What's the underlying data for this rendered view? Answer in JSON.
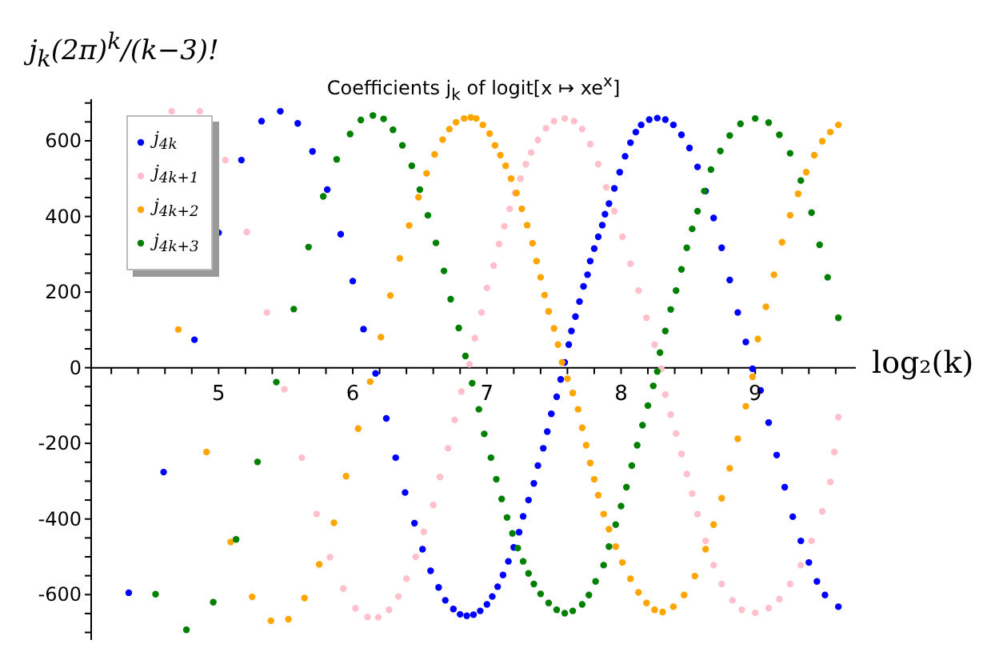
{
  "chart_data": {
    "type": "scatter",
    "title": "Coefficients j$_{k}$ of logit[x ↦ xe$^{x}$]",
    "xlabel": "log₂(k)",
    "ylabel": "j$_{k}$(2π)$^{k}$/(k−3)!",
    "marker": "circle",
    "legend": "top left",
    "xlim": [
      4.05,
      9.75
    ],
    "xticks": [
      {
        "value": 4.2,
        "label": null
      },
      {
        "value": 4.4,
        "label": null
      },
      {
        "value": 4.6,
        "label": null
      },
      {
        "value": 4.8,
        "label": null
      },
      5,
      {
        "value": 5.2,
        "label": null
      },
      {
        "value": 5.4,
        "label": null
      },
      {
        "value": 5.6,
        "label": null
      },
      {
        "value": 5.8,
        "label": null
      },
      6,
      {
        "value": 6.2,
        "label": null
      },
      {
        "value": 6.4,
        "label": null
      },
      {
        "value": 6.6,
        "label": null
      },
      {
        "value": 6.8,
        "label": null
      },
      7,
      {
        "value": 7.2,
        "label": null
      },
      {
        "value": 7.4,
        "label": null
      },
      {
        "value": 7.6,
        "label": null
      },
      {
        "value": 7.8,
        "label": null
      },
      8,
      {
        "value": 8.2,
        "label": null
      },
      {
        "value": 8.4,
        "label": null
      },
      {
        "value": 8.6,
        "label": null
      },
      {
        "value": 8.8,
        "label": null
      },
      9,
      {
        "value": 9.2,
        "label": null
      },
      {
        "value": 9.4,
        "label": null
      },
      {
        "value": 9.6,
        "label": null
      }
    ],
    "ylim": [
      -720,
      710
    ],
    "yticks": [
      {
        "value": -700,
        "label": null
      },
      {
        "value": -650,
        "label": null
      },
      -600,
      {
        "value": -550,
        "label": null
      },
      {
        "value": -500,
        "label": null
      },
      {
        "value": -450,
        "label": null
      },
      -400,
      {
        "value": -350,
        "label": null
      },
      {
        "value": -300,
        "label": null
      },
      {
        "value": -250,
        "label": null
      },
      -200,
      {
        "value": -150,
        "label": null
      },
      {
        "value": -100,
        "label": null
      },
      {
        "value": -50,
        "label": null
      },
      0,
      {
        "value": 50,
        "label": null
      },
      {
        "value": 100,
        "label": null
      },
      {
        "value": 150,
        "label": null
      },
      200,
      {
        "value": 250,
        "label": null
      },
      {
        "value": 300,
        "label": null
      },
      {
        "value": 350,
        "label": null
      },
      400,
      {
        "value": 450,
        "label": null
      },
      {
        "value": 500,
        "label": null
      },
      {
        "value": 550,
        "label": null
      },
      600,
      {
        "value": 650,
        "label": null
      },
      {
        "value": 700,
        "label": null
      }
    ],
    "series": [
      {
        "name": "j$_{4k}$",
        "color": "#0000ff",
        "x": [
          4.33,
          4.59,
          4.82,
          5.0,
          5.17,
          5.32,
          5.46,
          5.59,
          5.7,
          5.81,
          5.91,
          6.0,
          6.08,
          6.17,
          6.25,
          6.32,
          6.39,
          6.46,
          6.52,
          6.58,
          6.64,
          6.69,
          6.75,
          6.8,
          6.85,
          6.9,
          6.95,
          7.0,
          7.04,
          7.08,
          7.12,
          7.16,
          7.2,
          7.24,
          7.27,
          7.31,
          7.35,
          7.38,
          7.42,
          7.45,
          7.48,
          7.52,
          7.55,
          7.58,
          7.61,
          7.63,
          7.66,
          7.69,
          7.72,
          7.75,
          7.77,
          7.8,
          7.83,
          7.86,
          7.88,
          7.91,
          7.95,
          7.99,
          8.03,
          8.07,
          8.11,
          8.15,
          8.21,
          8.27,
          8.33,
          8.39,
          8.45,
          8.51,
          8.57,
          8.63,
          8.69,
          8.75,
          8.81,
          8.87,
          8.93,
          8.98,
          9.04,
          9.1,
          9.16,
          9.22,
          9.28,
          9.34,
          9.4,
          9.46,
          9.52,
          9.62
        ],
        "values": [
          -595,
          -276,
          74,
          357,
          549,
          652,
          678,
          646,
          572,
          471,
          353,
          229,
          102,
          -15,
          -134,
          -238,
          -330,
          -411,
          -480,
          -537,
          -581,
          -615,
          -638,
          -652,
          -656,
          -653,
          -643,
          -626,
          -605,
          -579,
          -548,
          -512,
          -475,
          -435,
          -393,
          -350,
          -306,
          -259,
          -213,
          -169,
          -122,
          -77,
          -31,
          14,
          61,
          97,
          135,
          175,
          215,
          246,
          282,
          315,
          346,
          377,
          406,
          434,
          474,
          517,
          559,
          595,
          623,
          642,
          656,
          660,
          656,
          642,
          616,
          581,
          531,
          467,
          396,
          317,
          232,
          146,
          68,
          -3,
          -60,
          -145,
          -231,
          -316,
          -394,
          -458,
          -515,
          -565,
          -601,
          -632
        ]
      },
      {
        "name": "j$_{4k+1}$",
        "color": "#ffc0cb",
        "x": [
          4.65,
          4.86,
          5.05,
          5.21,
          5.36,
          5.49,
          5.62,
          5.73,
          5.83,
          5.93,
          6.02,
          6.11,
          6.19,
          6.27,
          6.34,
          6.4,
          6.47,
          6.53,
          6.6,
          6.65,
          6.71,
          6.76,
          6.81,
          6.87,
          6.91,
          6.96,
          7.0,
          7.05,
          7.09,
          7.13,
          7.17,
          7.21,
          7.25,
          7.29,
          7.33,
          7.38,
          7.44,
          7.5,
          7.58,
          7.65,
          7.71,
          7.77,
          7.83,
          7.89,
          7.95,
          8.01,
          8.07,
          8.13,
          8.19,
          8.25,
          8.3,
          8.33,
          8.37,
          8.41,
          8.45,
          8.49,
          8.53,
          8.57,
          8.63,
          8.69,
          8.75,
          8.83,
          8.9,
          9.0,
          9.1,
          9.18,
          9.26,
          9.34,
          9.42,
          9.5,
          9.56,
          9.59,
          9.62
        ],
        "values": [
          678,
          678,
          549,
          359,
          146,
          -57,
          -238,
          -387,
          -501,
          -584,
          -636,
          -659,
          -660,
          -640,
          -605,
          -558,
          -500,
          -434,
          -363,
          -289,
          -213,
          -138,
          -63,
          9,
          78,
          146,
          211,
          270,
          327,
          374,
          420,
          462,
          500,
          538,
          569,
          602,
          633,
          652,
          659,
          652,
          631,
          591,
          538,
          477,
          414,
          346,
          275,
          204,
          132,
          61,
          -3,
          -71,
          -124,
          -174,
          -228,
          -281,
          -333,
          -387,
          -458,
          -522,
          -572,
          -615,
          -640,
          -648,
          -636,
          -612,
          -572,
          -522,
          -458,
          -380,
          -302,
          -223,
          -131
        ]
      },
      {
        "name": "j$_{4k+2}$",
        "color": "#ffa500",
        "x": [
          4.7,
          4.91,
          5.09,
          5.25,
          5.39,
          5.52,
          5.64,
          5.75,
          5.86,
          5.95,
          6.04,
          6.13,
          6.21,
          6.28,
          6.35,
          6.42,
          6.49,
          6.55,
          6.61,
          6.67,
          6.72,
          6.77,
          6.83,
          6.88,
          6.92,
          6.97,
          7.02,
          7.06,
          7.1,
          7.14,
          7.18,
          7.22,
          7.26,
          7.3,
          7.34,
          7.37,
          7.4,
          7.43,
          7.46,
          7.5,
          7.53,
          7.56,
          7.6,
          7.64,
          7.68,
          7.71,
          7.74,
          7.77,
          7.8,
          7.83,
          7.87,
          7.91,
          7.96,
          8.01,
          8.07,
          8.13,
          8.19,
          8.25,
          8.31,
          8.39,
          8.47,
          8.55,
          8.63,
          8.69,
          8.75,
          8.81,
          8.87,
          8.93,
          8.98,
          9.02,
          9.08,
          9.14,
          9.2,
          9.26,
          9.32,
          9.38,
          9.44,
          9.5,
          9.56,
          9.62
        ],
        "values": [
          101,
          -223,
          -461,
          -606,
          -669,
          -665,
          -609,
          -520,
          -410,
          -287,
          -161,
          -37,
          81,
          191,
          289,
          376,
          451,
          514,
          564,
          603,
          631,
          649,
          659,
          662,
          659,
          642,
          619,
          588,
          562,
          534,
          500,
          462,
          420,
          377,
          329,
          282,
          239,
          192,
          149,
          104,
          61,
          14,
          -29,
          -67,
          -110,
          -159,
          -205,
          -252,
          -295,
          -337,
          -387,
          -427,
          -473,
          -515,
          -558,
          -594,
          -622,
          -640,
          -646,
          -632,
          -601,
          -551,
          -480,
          -415,
          -345,
          -266,
          -188,
          -102,
          -24,
          76,
          161,
          246,
          332,
          403,
          460,
          517,
          562,
          599,
          623,
          642
        ]
      },
      {
        "name": "j$_{4k+3}$",
        "color": "#008000",
        "x": [
          4.53,
          4.76,
          4.96,
          5.13,
          5.29,
          5.43,
          5.56,
          5.67,
          5.78,
          5.88,
          5.98,
          6.06,
          6.15,
          6.23,
          6.3,
          6.37,
          6.44,
          6.5,
          6.56,
          6.62,
          6.68,
          6.73,
          6.79,
          6.84,
          6.89,
          6.94,
          6.98,
          7.03,
          7.07,
          7.11,
          7.15,
          7.19,
          7.23,
          7.27,
          7.31,
          7.35,
          7.4,
          7.46,
          7.52,
          7.58,
          7.64,
          7.71,
          7.76,
          7.81,
          7.87,
          7.91,
          7.96,
          8.0,
          8.04,
          8.08,
          8.12,
          8.16,
          8.2,
          8.24,
          8.27,
          8.29,
          8.33,
          8.37,
          8.41,
          8.45,
          8.49,
          8.53,
          8.57,
          8.62,
          8.67,
          8.74,
          8.81,
          8.89,
          9.0,
          9.1,
          9.18,
          9.26,
          9.34,
          9.42,
          9.48,
          9.54,
          9.62
        ],
        "values": [
          -599,
          -693,
          -620,
          -454,
          -249,
          -38,
          155,
          319,
          453,
          551,
          618,
          655,
          667,
          658,
          629,
          588,
          534,
          471,
          403,
          330,
          256,
          181,
          105,
          31,
          -41,
          -110,
          -175,
          -238,
          -295,
          -347,
          -396,
          -438,
          -477,
          -512,
          -544,
          -572,
          -598,
          -622,
          -640,
          -649,
          -643,
          -626,
          -601,
          -565,
          -522,
          -473,
          -415,
          -366,
          -316,
          -259,
          -205,
          -152,
          -100,
          -48,
          -10,
          40,
          97,
          154,
          204,
          260,
          317,
          367,
          414,
          467,
          524,
          573,
          614,
          645,
          659,
          648,
          616,
          567,
          495,
          410,
          325,
          239,
          132
        ]
      }
    ]
  }
}
